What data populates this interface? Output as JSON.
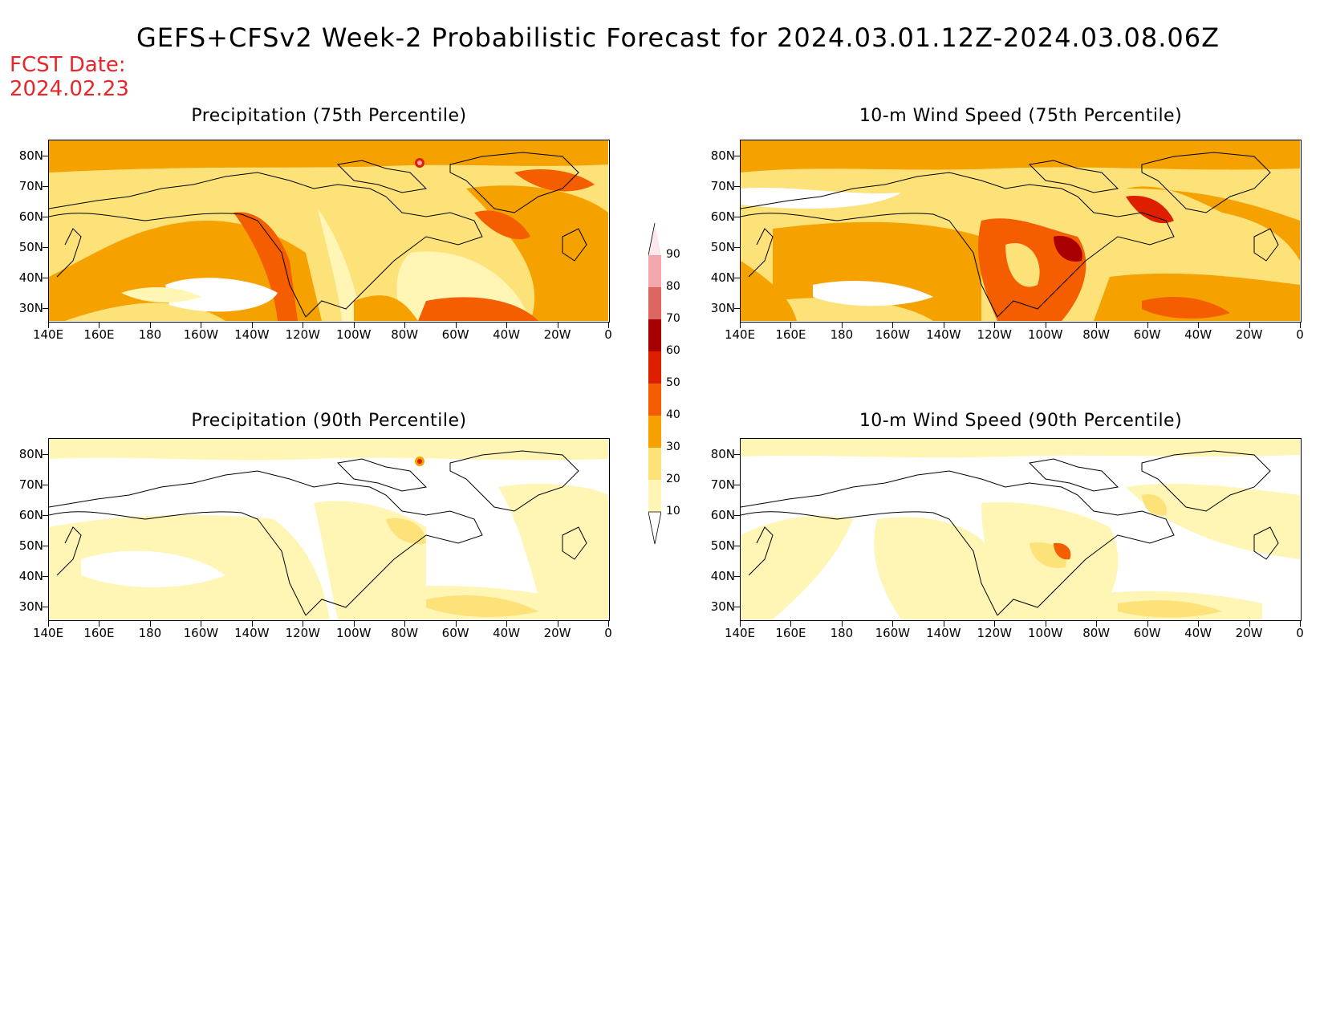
{
  "header": {
    "title": "GEFS+CFSv2 Week-2 Probabilistic Forecast for 2024.03.01.12Z-2024.03.08.06Z",
    "fcst_label": "FCST Date:",
    "fcst_date": "2024.02.23"
  },
  "axes": {
    "lat_labels": [
      "80N",
      "70N",
      "60N",
      "50N",
      "40N",
      "30N"
    ],
    "lon_labels": [
      "140E",
      "160E",
      "180",
      "160W",
      "140W",
      "120W",
      "100W",
      "80W",
      "60W",
      "40W",
      "20W",
      "0"
    ]
  },
  "panels": [
    {
      "title": "Precipitation (75th Percentile)",
      "field": "precip-75"
    },
    {
      "title": "10-m Wind Speed (75th Percentile)",
      "field": "wind-75"
    },
    {
      "title": "Precipitation (90th Percentile)",
      "field": "precip-90"
    },
    {
      "title": "10-m Wind Speed (90th Percentile)",
      "field": "wind-90"
    }
  ],
  "colorbar": {
    "labels": [
      "90",
      "80",
      "70",
      "60",
      "50",
      "40",
      "30",
      "20",
      "10"
    ],
    "colors": [
      "#fbe7ec",
      "#f3a6ac",
      "#dc6662",
      "#a80000",
      "#dd1f00",
      "#f45d00",
      "#f5a100",
      "#fde27a",
      "#fff5b5"
    ]
  },
  "colors": {
    "p10": "#fff5b5",
    "p20": "#fde27a",
    "p30": "#f5a100",
    "p40": "#f45d00",
    "p50": "#dd1f00",
    "p60": "#a80000",
    "coast": "#000000",
    "fcst_text": "#e8262a"
  }
}
